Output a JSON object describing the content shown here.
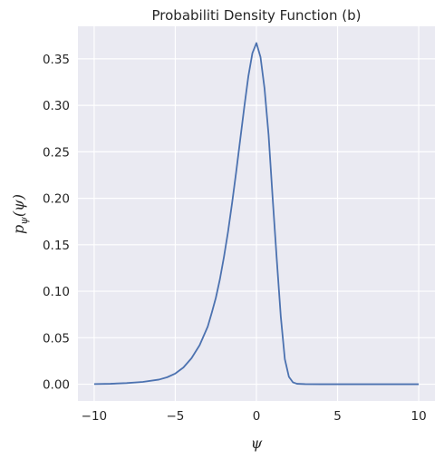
{
  "chart_data": {
    "type": "line",
    "title": "Probabiliti Density Function (b)",
    "xlabel": "ψ",
    "ylabel": {
      "main": "p",
      "subscript": "ψ",
      "suffix": "(ψ)"
    },
    "xlim": [
      -11,
      11
    ],
    "ylim": [
      -0.018,
      0.385
    ],
    "xticks": [
      -10,
      -5,
      0,
      5,
      10
    ],
    "xtick_labels": [
      "−10",
      "−5",
      "0",
      "5",
      "10"
    ],
    "yticks": [
      0.0,
      0.05,
      0.1,
      0.15,
      0.2,
      0.25,
      0.3,
      0.35
    ],
    "ytick_labels": [
      "0.00",
      "0.05",
      "0.10",
      "0.15",
      "0.20",
      "0.25",
      "0.30",
      "0.35"
    ],
    "grid": true,
    "background": "#eaeaf2",
    "line_color": "#4c72b0",
    "series": [
      {
        "x": [
          -10,
          -9,
          -8,
          -7,
          -6,
          -5.5,
          -5,
          -4.5,
          -4,
          -3.5,
          -3,
          -2.75,
          -2.5,
          -2.25,
          -2,
          -1.75,
          -1.5,
          -1.25,
          -1,
          -0.75,
          -0.5,
          -0.25,
          0,
          0.25,
          0.5,
          0.75,
          1,
          1.25,
          1.5,
          1.75,
          2,
          2.25,
          2.5,
          3,
          4,
          5,
          6,
          8,
          10
        ],
        "y": [
          0.0002,
          0.0005,
          0.0012,
          0.0025,
          0.005,
          0.0075,
          0.0115,
          0.018,
          0.028,
          0.042,
          0.062,
          0.077,
          0.093,
          0.113,
          0.137,
          0.164,
          0.195,
          0.228,
          0.263,
          0.298,
          0.331,
          0.356,
          0.367,
          0.352,
          0.318,
          0.268,
          0.2,
          0.135,
          0.073,
          0.027,
          0.008,
          0.002,
          0.0005,
          0.0001,
          0.0,
          0.0,
          0.0,
          0.0,
          0.0
        ]
      }
    ]
  }
}
